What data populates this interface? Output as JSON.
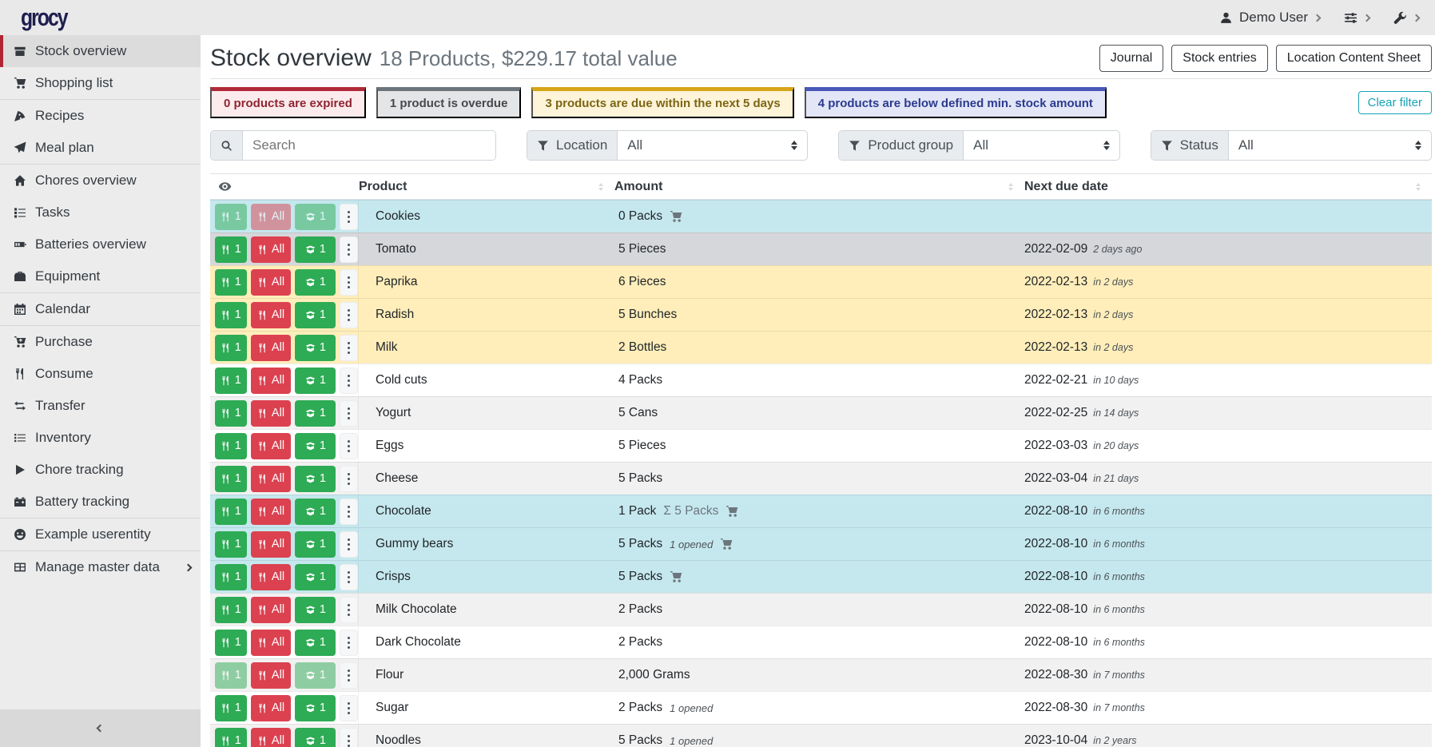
{
  "navbar": {
    "logo": "grocy",
    "user_menu": {
      "icon": "person",
      "label": "Demo User"
    },
    "settings_menu": {
      "icon": "sliders"
    },
    "admin_menu": {
      "icon": "wrench"
    }
  },
  "sidebar": {
    "groups": [
      [
        {
          "icon": "boxes",
          "label": "Stock overview",
          "active": true
        },
        {
          "icon": "cart",
          "label": "Shopping list"
        }
      ],
      [
        {
          "icon": "pizza",
          "label": "Recipes"
        },
        {
          "icon": "paper-plane",
          "label": "Meal plan"
        }
      ],
      [
        {
          "icon": "home",
          "label": "Chores overview"
        },
        {
          "icon": "tasks",
          "label": "Tasks"
        },
        {
          "icon": "battery",
          "label": "Batteries overview"
        },
        {
          "icon": "toolbox",
          "label": "Equipment"
        }
      ],
      [
        {
          "icon": "calendar",
          "label": "Calendar"
        }
      ],
      [
        {
          "icon": "cart-plus",
          "label": "Purchase"
        },
        {
          "icon": "utensils",
          "label": "Consume"
        },
        {
          "icon": "exchange",
          "label": "Transfer"
        },
        {
          "icon": "list",
          "label": "Inventory"
        },
        {
          "icon": "play",
          "label": "Chore tracking"
        },
        {
          "icon": "car-battery",
          "label": "Battery tracking"
        }
      ],
      [
        {
          "icon": "smiley",
          "label": "Example userentity"
        }
      ],
      [
        {
          "icon": "table-grid",
          "label": "Manage master data",
          "chevron": true
        }
      ]
    ]
  },
  "header": {
    "title": "Stock overview",
    "subtitle": "18 Products, $229.17 total value",
    "buttons": [
      "Journal",
      "Stock entries",
      "Location Content Sheet"
    ]
  },
  "status_chips": [
    {
      "text": "0 products are expired",
      "accent": "#b02a37",
      "bg": "#fbebed",
      "fg": "#8f2430"
    },
    {
      "text": "1 product is overdue",
      "accent": "#6c757d",
      "bg": "#e4e5e7",
      "fg": "#45494d"
    },
    {
      "text": "3 products are due within the next 5 days",
      "accent": "#d6a518",
      "bg": "#fdf4d9",
      "fg": "#7e6514"
    },
    {
      "text": "4 products are below defined min. stock amount",
      "accent": "#4959b8",
      "bg": "#e2e6f6",
      "fg": "#2b3a8f"
    }
  ],
  "clear_filter_label": "Clear filter",
  "filters": {
    "search_placeholder": "Search",
    "groups": [
      {
        "icon": "funnel",
        "label": "Location",
        "value": "All"
      },
      {
        "icon": "funnel",
        "label": "Product group",
        "value": "All"
      },
      {
        "icon": "funnel",
        "label": "Status",
        "value": "All"
      }
    ]
  },
  "table": {
    "columns": [
      "Product",
      "Amount",
      "Next due date"
    ],
    "row_buttons": {
      "consume_one": "1",
      "consume_all": "All",
      "open_one": "1"
    },
    "rows": [
      {
        "product": "Cookies",
        "amount": "0 Packs",
        "aggregate": "",
        "note": "",
        "cart": true,
        "due_date": "",
        "due_note": "",
        "bg": "info",
        "faded": "all"
      },
      {
        "product": "Tomato",
        "amount": "5 Pieces",
        "aggregate": "",
        "note": "",
        "cart": false,
        "due_date": "2022-02-09",
        "due_note": "2 days ago",
        "bg": "secondary",
        "faded": ""
      },
      {
        "product": "Paprika",
        "amount": "6 Pieces",
        "aggregate": "",
        "note": "",
        "cart": false,
        "due_date": "2022-02-13",
        "due_note": "in 2 days",
        "bg": "warning",
        "faded": ""
      },
      {
        "product": "Radish",
        "amount": "5 Bunches",
        "aggregate": "",
        "note": "",
        "cart": false,
        "due_date": "2022-02-13",
        "due_note": "in 2 days",
        "bg": "warning",
        "faded": ""
      },
      {
        "product": "Milk",
        "amount": "2 Bottles",
        "aggregate": "",
        "note": "",
        "cart": false,
        "due_date": "2022-02-13",
        "due_note": "in 2 days",
        "bg": "warning",
        "faded": ""
      },
      {
        "product": "Cold cuts",
        "amount": "4 Packs",
        "aggregate": "",
        "note": "",
        "cart": false,
        "due_date": "2022-02-21",
        "due_note": "in 10 days",
        "bg": "",
        "faded": ""
      },
      {
        "product": "Yogurt",
        "amount": "5 Cans",
        "aggregate": "",
        "note": "",
        "cart": false,
        "due_date": "2022-02-25",
        "due_note": "in 14 days",
        "bg": "stripe",
        "faded": ""
      },
      {
        "product": "Eggs",
        "amount": "5 Pieces",
        "aggregate": "",
        "note": "",
        "cart": false,
        "due_date": "2022-03-03",
        "due_note": "in 20 days",
        "bg": "",
        "faded": ""
      },
      {
        "product": "Cheese",
        "amount": "5 Packs",
        "aggregate": "",
        "note": "",
        "cart": false,
        "due_date": "2022-03-04",
        "due_note": "in 21 days",
        "bg": "stripe",
        "faded": ""
      },
      {
        "product": "Chocolate",
        "amount": "1 Pack",
        "aggregate": "Σ 5 Packs",
        "note": "",
        "cart": true,
        "due_date": "2022-08-10",
        "due_note": "in 6 months",
        "bg": "info",
        "faded": ""
      },
      {
        "product": "Gummy bears",
        "amount": "5 Packs",
        "aggregate": "",
        "note": "1 opened",
        "cart": true,
        "due_date": "2022-08-10",
        "due_note": "in 6 months",
        "bg": "info",
        "faded": ""
      },
      {
        "product": "Crisps",
        "amount": "5 Packs",
        "aggregate": "",
        "note": "",
        "cart": true,
        "due_date": "2022-08-10",
        "due_note": "in 6 months",
        "bg": "info",
        "faded": ""
      },
      {
        "product": "Milk Chocolate",
        "amount": "2 Packs",
        "aggregate": "",
        "note": "",
        "cart": false,
        "due_date": "2022-08-10",
        "due_note": "in 6 months",
        "bg": "stripe",
        "faded": ""
      },
      {
        "product": "Dark Chocolate",
        "amount": "2 Packs",
        "aggregate": "",
        "note": "",
        "cart": false,
        "due_date": "2022-08-10",
        "due_note": "in 6 months",
        "bg": "",
        "faded": ""
      },
      {
        "product": "Flour",
        "amount": "2,000 Grams",
        "aggregate": "",
        "note": "",
        "cart": false,
        "due_date": "2022-08-30",
        "due_note": "in 7 months",
        "bg": "stripe",
        "faded": "ones"
      },
      {
        "product": "Sugar",
        "amount": "2 Packs",
        "aggregate": "",
        "note": "1 opened",
        "cart": false,
        "due_date": "2022-08-30",
        "due_note": "in 7 months",
        "bg": "",
        "faded": ""
      },
      {
        "product": "Noodles",
        "amount": "5 Packs",
        "aggregate": "",
        "note": "1 opened",
        "cart": false,
        "due_date": "2023-10-04",
        "due_note": "in 2 years",
        "bg": "stripe",
        "faded": ""
      }
    ]
  },
  "colors": {
    "brand": "#1e1e50",
    "success_button": "#2eab55",
    "danger_button": "#dc4150",
    "info_row": "#c5e8ee",
    "warning_row": "#ffeeba",
    "secondary_row": "#d5d7da",
    "clear_filter_accent": "#17a2b8",
    "active_item_border": "#b02433"
  }
}
